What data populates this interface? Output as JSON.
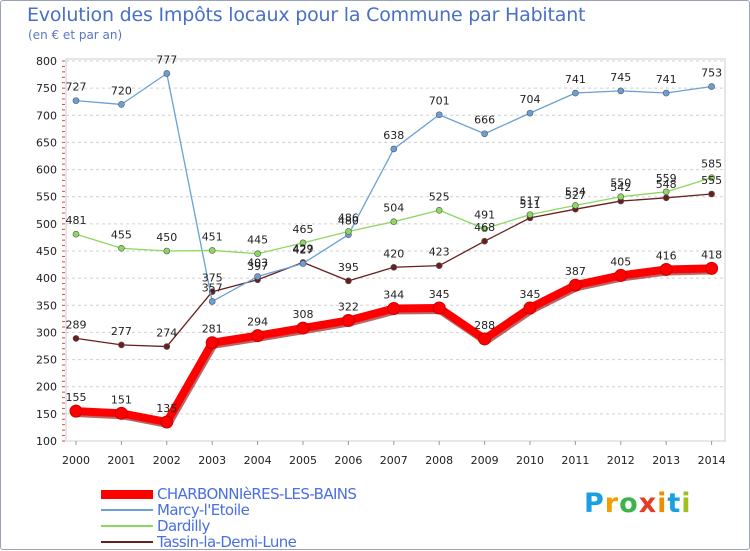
{
  "title": "Evolution des Impôts locaux pour la Commune par Habitant",
  "subtitle": "(en € et par an)",
  "logo": {
    "text": "Proxiti",
    "colors": [
      "#1aa0e0",
      "#f0a000",
      "#3cb44b",
      "#e53c26",
      "#f08c00",
      "#1aa0e0",
      "#a0c020"
    ]
  },
  "chart_data": {
    "type": "line",
    "title": "Evolution des Impôts locaux pour la Commune par Habitant",
    "subtitle": "(en € et par an)",
    "x": [
      "2000",
      "2001",
      "2002",
      "2003",
      "2004",
      "2005",
      "2006",
      "2007",
      "2008",
      "2009",
      "2010",
      "2011",
      "2012",
      "2013",
      "2014"
    ],
    "y_ticks": [
      100,
      150,
      200,
      250,
      300,
      350,
      400,
      450,
      500,
      550,
      600,
      650,
      700,
      750,
      800
    ],
    "ylim": [
      100,
      800
    ],
    "grid": "horizontal dashed",
    "series": [
      {
        "name": "CHARBONNIèRES-LES-BAINS",
        "color": "#ff0000",
        "values": [
          155,
          151,
          135,
          281,
          294,
          308,
          322,
          344,
          345,
          288,
          345,
          387,
          405,
          416,
          418
        ],
        "labels": [
          "155",
          "151",
          "135",
          "281",
          "294",
          "308",
          "322",
          "344",
          "345",
          "288",
          "345",
          "387",
          "405",
          "416",
          "418"
        ]
      },
      {
        "name": "Marcy-l'Etoile",
        "color": "#6aa0d8",
        "values": [
          727,
          720,
          777,
          357,
          403,
          427,
          480,
          638,
          701,
          666,
          704,
          741,
          745,
          741,
          753
        ],
        "labels": [
          "727",
          "720",
          "777",
          "357",
          "403",
          "427",
          "480",
          "638",
          "701",
          "666",
          "704",
          "741",
          "745",
          "741",
          "753"
        ]
      },
      {
        "name": "Dardilly",
        "color": "#8cd860",
        "values": [
          481,
          455,
          450,
          451,
          445,
          465,
          486,
          504,
          525,
          491,
          517,
          534,
          550,
          559,
          585
        ],
        "labels": [
          "481",
          "455",
          "450",
          "451",
          "445",
          "465",
          "486",
          "504",
          "525",
          "491",
          "517",
          "534",
          "550",
          "559",
          "585"
        ]
      },
      {
        "name": "Tassin-la-Demi-Lune",
        "color": "#6a1f1f",
        "values": [
          289,
          277,
          274,
          375,
          397,
          429,
          395,
          420,
          423,
          468,
          511,
          527,
          542,
          548,
          555
        ],
        "labels": [
          "289",
          "277",
          "274",
          "375",
          "397",
          "429",
          "395",
          "420",
          "423",
          "468",
          "511",
          "527",
          "542",
          "548",
          "555"
        ]
      }
    ],
    "legend": "bottom-left"
  }
}
